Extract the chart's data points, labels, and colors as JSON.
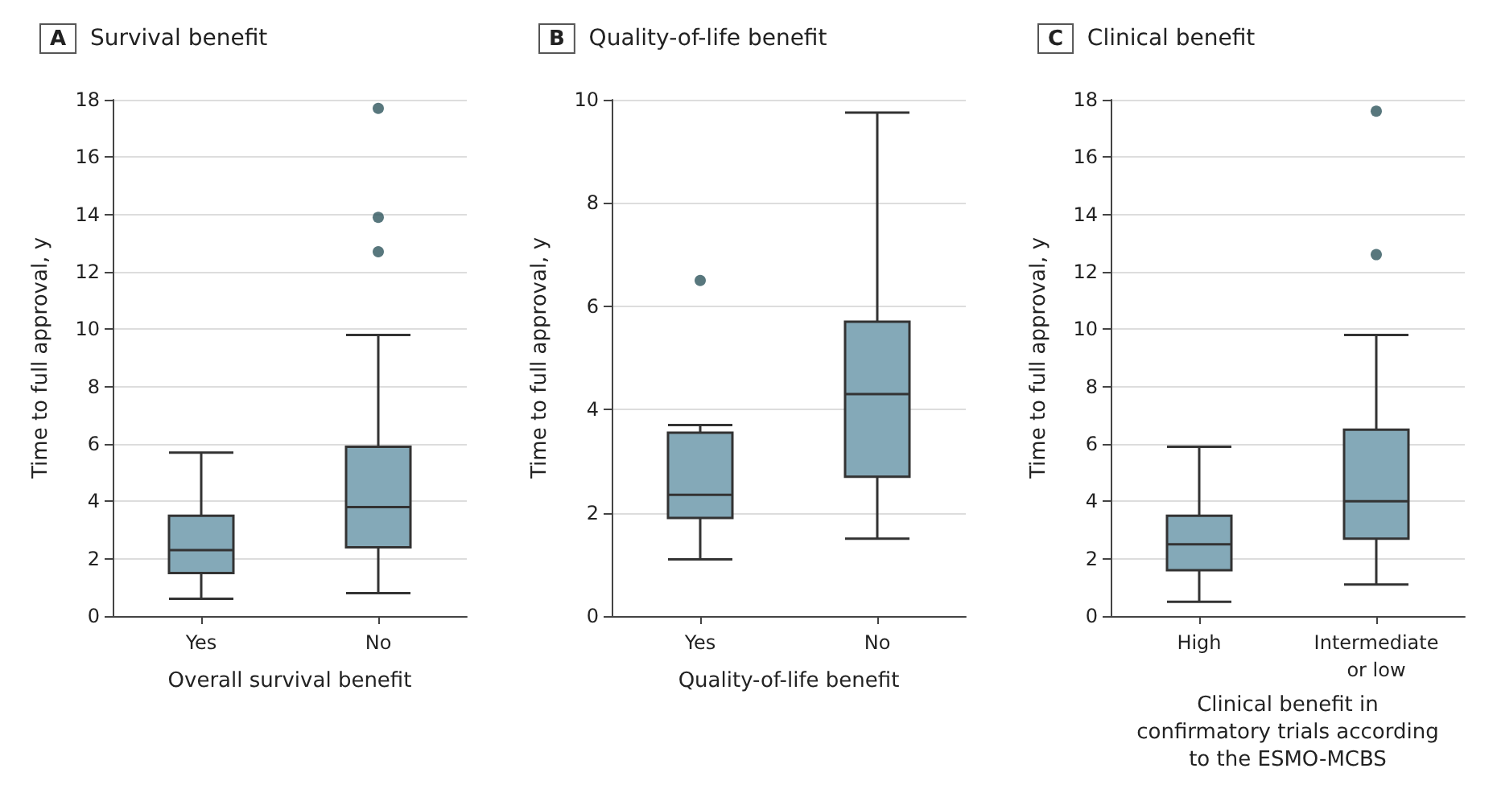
{
  "chart_data": [
    {
      "type": "box",
      "title": "Survival benefit",
      "annotations": [
        "A"
      ],
      "xlabel": "Overall survival benefit",
      "ylabel": "Time to full approval, y",
      "categories": [
        "Yes",
        "No"
      ],
      "series": [
        {
          "color": "#84a9b8",
          "boxes": [
            {
              "low": 0.6,
              "q1": 1.5,
              "median": 2.3,
              "q3": 3.5,
              "high": 5.7
            },
            {
              "low": 0.8,
              "q1": 2.4,
              "median": 3.8,
              "q3": 5.9,
              "high": 9.8,
              "outliers": [
                12.7,
                13.9,
                17.7
              ]
            }
          ]
        }
      ],
      "ylim": [
        0,
        18
      ],
      "yticks": [
        0,
        2,
        4,
        6,
        8,
        10,
        12,
        14,
        16,
        18
      ],
      "grid": "y"
    },
    {
      "type": "box",
      "title": "Quality-of-life benefit",
      "annotations": [
        "B"
      ],
      "xlabel": "Quality-of-life benefit",
      "ylabel": "Time to full approval, y",
      "categories": [
        "Yes",
        "No"
      ],
      "series": [
        {
          "color": "#84a9b8",
          "boxes": [
            {
              "low": 1.1,
              "q1": 1.9,
              "median": 2.35,
              "q3": 3.55,
              "high": 3.7,
              "outliers": [
                6.5
              ]
            },
            {
              "low": 1.5,
              "q1": 2.7,
              "median": 4.3,
              "q3": 5.7,
              "high": 9.75
            }
          ]
        }
      ],
      "ylim": [
        0,
        10
      ],
      "yticks": [
        0,
        2,
        4,
        6,
        8,
        10
      ],
      "grid": "y"
    },
    {
      "type": "box",
      "title": "Clinical benefit",
      "annotations": [
        "C"
      ],
      "xlabel": "Clinical benefit in confirmatory trials according to the ESMO-MCBS",
      "ylabel": "Time to full approval, y",
      "categories": [
        "High",
        "Intermediate or low"
      ],
      "series": [
        {
          "color": "#84a9b8",
          "boxes": [
            {
              "low": 0.5,
              "q1": 1.6,
              "median": 2.5,
              "q3": 3.5,
              "high": 5.9
            },
            {
              "low": 1.1,
              "q1": 2.7,
              "median": 4.0,
              "q3": 6.5,
              "high": 9.8,
              "outliers": [
                12.6,
                17.6
              ]
            }
          ]
        }
      ],
      "ylim": [
        0,
        18
      ],
      "yticks": [
        0,
        2,
        4,
        6,
        8,
        10,
        12,
        14,
        16,
        18
      ],
      "grid": "y"
    }
  ]
}
